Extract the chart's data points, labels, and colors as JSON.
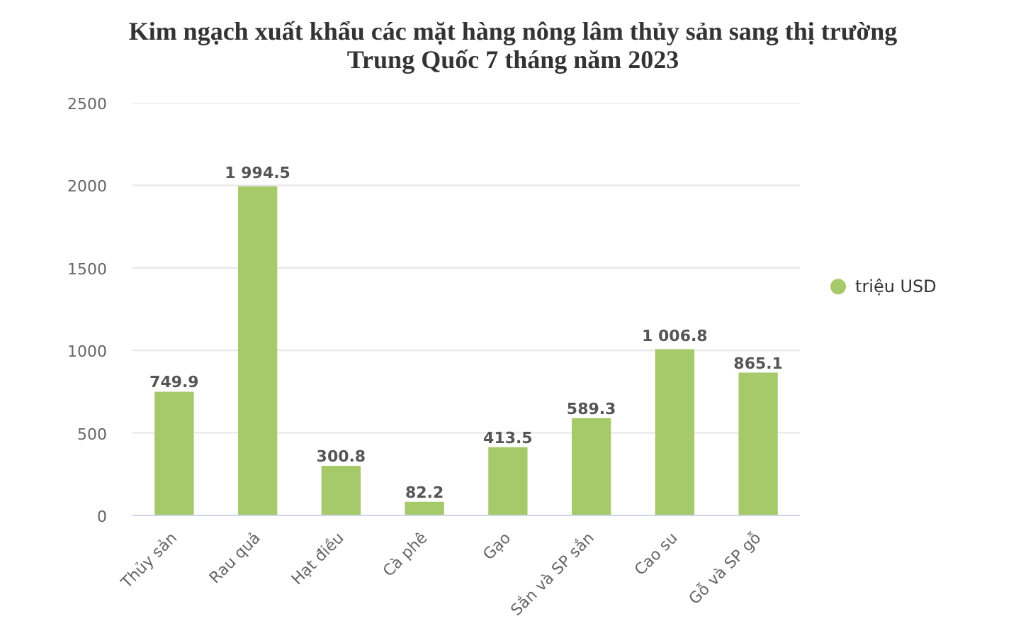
{
  "chart_data": {
    "type": "bar",
    "title": "Kim ngạch xuất khẩu các mặt hàng nông lâm thủy sản sang thị trường Trung Quốc 7 tháng năm 2023",
    "categories": [
      "Thủy sản",
      "Rau quả",
      "Hạt điều",
      "Cà phê",
      "Gạo",
      "Sắn và SP sắn",
      "Cao su",
      "Gỗ và SP gỗ"
    ],
    "series": [
      {
        "name": "triệu USD",
        "color": "#a6c96a",
        "values": [
          749.9,
          1994.5,
          300.8,
          82.2,
          413.5,
          589.3,
          1006.8,
          865.1
        ],
        "value_labels": [
          "749.9",
          "1 994.5",
          "300.8",
          "82.2",
          "413.5",
          "589.3",
          "1 006.8",
          "865.1"
        ]
      }
    ],
    "ylim": [
      0,
      2500
    ],
    "yticks": [
      0,
      500,
      1000,
      1500,
      2000,
      2500
    ],
    "grid": "y",
    "legend": "right"
  }
}
